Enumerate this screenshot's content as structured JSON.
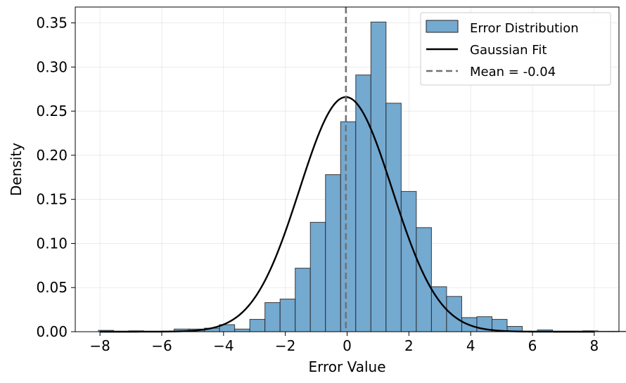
{
  "chart_data": {
    "type": "bar",
    "xlabel": "Error Value",
    "ylabel": "Density",
    "xlim": [
      -8.8,
      8.8
    ],
    "ylim": [
      0,
      0.368
    ],
    "x_ticks": [
      -8,
      -6,
      -4,
      -2,
      0,
      2,
      4,
      6,
      8
    ],
    "x_tick_labels": [
      "−8",
      "−6",
      "−4",
      "−2",
      "0",
      "2",
      "4",
      "6",
      "8"
    ],
    "y_ticks": [
      0.0,
      0.05,
      0.1,
      0.15,
      0.2,
      0.25,
      0.3,
      0.35
    ],
    "y_tick_labels": [
      "0.00",
      "0.05",
      "0.10",
      "0.15",
      "0.20",
      "0.25",
      "0.30",
      "0.35"
    ],
    "grid": true,
    "legend_position": "top-right",
    "histogram": {
      "name": "Error Distribution",
      "bin_start": -8.05,
      "bin_width": 0.49,
      "densities": [
        0.0015,
        0.0005,
        0.001,
        0.0005,
        0.0005,
        0.003,
        0.003,
        0.004,
        0.008,
        0.003,
        0.014,
        0.033,
        0.037,
        0.072,
        0.124,
        0.178,
        0.238,
        0.291,
        0.351,
        0.259,
        0.159,
        0.118,
        0.051,
        0.04,
        0.016,
        0.017,
        0.014,
        0.006,
        0.0005,
        0.002,
        0.0005,
        0.0005,
        0.001,
        0.0005,
        0.0005
      ],
      "fill_color": "#74a9d0",
      "edge_color": "#222222"
    },
    "fit": {
      "name": "Gaussian Fit",
      "mean": -0.04,
      "std": 1.5,
      "color": "#000000"
    },
    "mean_line": {
      "name": "Mean = -0.04",
      "x": -0.04,
      "color": "#707070"
    }
  }
}
